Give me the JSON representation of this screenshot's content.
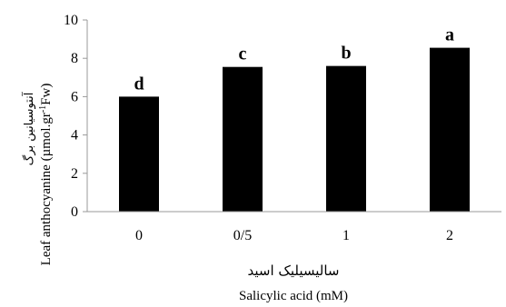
{
  "chart_data": {
    "type": "bar",
    "categories": [
      "0",
      "0/5",
      "1",
      "2"
    ],
    "values": [
      6.0,
      7.55,
      7.6,
      8.55
    ],
    "significance_letters": [
      "d",
      "c",
      "b",
      "a"
    ],
    "ylim": [
      0,
      10
    ],
    "yticks": [
      "0",
      "2",
      "4",
      "6",
      "8",
      "10"
    ],
    "xlabel_fa": "سالیسیلیک اسید",
    "xlabel": "Salicylic acid (mM)",
    "ylabel_fa": "آنتوسیانین برگ",
    "ylabel_main": "Leaf anthocyanine (µmol.gr",
    "ylabel_sup": "-1",
    "ylabel_tail": "Fw)",
    "bar_color": "#000000",
    "grid": false
  }
}
